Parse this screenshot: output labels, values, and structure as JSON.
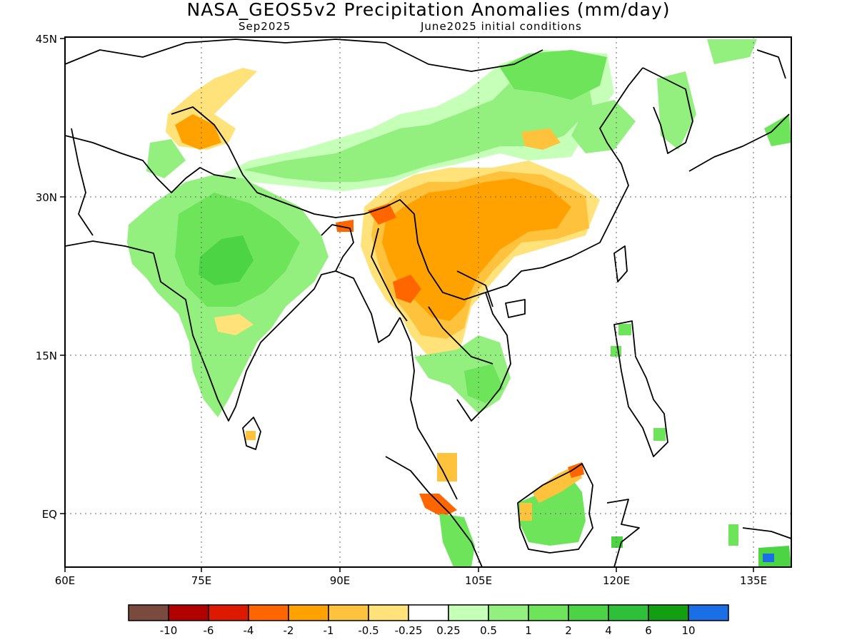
{
  "title": "NASA_GEOS5v2 Precipitation Anomalies (mm/day)",
  "subtitle_left": "Sep2025",
  "subtitle_right": "June2025 initial conditions",
  "lat_labels": [
    "45N",
    "30N",
    "15N",
    "EQ"
  ],
  "lon_labels": [
    "60E",
    "75E",
    "90E",
    "105E",
    "120E",
    "135E"
  ],
  "colorbar": {
    "labels": [
      "-10",
      "-6",
      "-4",
      "-2",
      "-1",
      "-0.5",
      "-0.25",
      "0.25",
      "0.5",
      "1",
      "2",
      "4",
      "6",
      "10"
    ],
    "colors": [
      "#7a4a3e",
      "#b20000",
      "#dd1a00",
      "#ff6600",
      "#ffa200",
      "#ffc23c",
      "#ffe27a",
      "#ffffff",
      "#c6ffb8",
      "#93f07e",
      "#6ee45a",
      "#4dd444",
      "#2ec038",
      "#12a012",
      "#1a6ee6"
    ]
  },
  "chart_data": {
    "type": "map",
    "title": "NASA_GEOS5v2 Precipitation Anomalies (mm/day)",
    "valid_month": "Sep2025",
    "initial_conditions": "June2025 initial conditions",
    "lon_range": [
      60,
      140
    ],
    "lat_range": [
      -6,
      45
    ],
    "grid": "dotted, every 15 degrees",
    "units": "mm/day",
    "levels": [
      -10,
      -6,
      -4,
      -2,
      -1,
      -0.5,
      -0.25,
      0.25,
      0.5,
      1,
      2,
      4,
      6,
      10
    ],
    "regions": [
      {
        "area": "India (central)",
        "anomaly": "2 to 4"
      },
      {
        "area": "India (south) / Sri Lanka",
        "anomaly": "0.5 to 2"
      },
      {
        "area": "Tibetan Plateau / western China",
        "anomaly": "0.25 to 1"
      },
      {
        "area": "Northern Pakistan / Kashmir",
        "anomaly": "-0.25 to -2"
      },
      {
        "area": "Southern China / Yunnan / Myanmar / Laos",
        "anomaly": "-0.5 to -4"
      },
      {
        "area": "Thailand / Cambodia",
        "anomaly": "0.5 to 2"
      },
      {
        "area": "Borneo (interior)",
        "anomaly": "0.5 to 2"
      },
      {
        "area": "Northwest Borneo coast",
        "anomaly": "-0.5 to -4"
      },
      {
        "area": "Malay Peninsula / northern Sumatra",
        "anomaly": "-0.5 to -4"
      },
      {
        "area": "Korea / Japan",
        "anomaly": "0.25 to 2"
      },
      {
        "area": "Northeast China",
        "anomaly": "0.5 to 1"
      },
      {
        "area": "New Guinea (northwest)",
        "anomaly": "4 to 10"
      }
    ]
  }
}
